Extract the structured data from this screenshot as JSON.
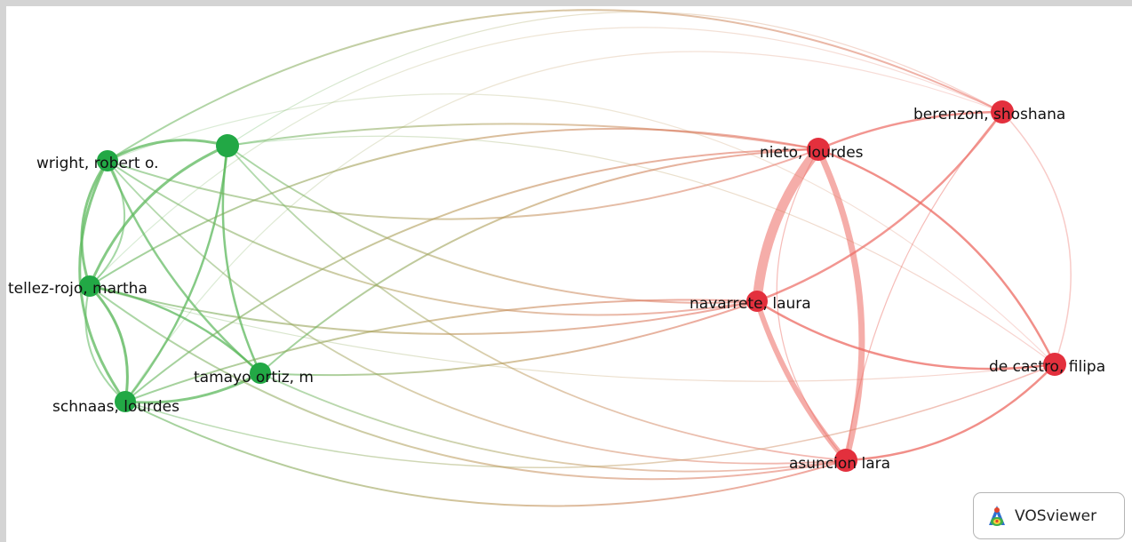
{
  "app": {
    "name": "VOSviewer"
  },
  "colors": {
    "cluster_green": "#22a845",
    "cluster_red": "#e3303d",
    "link_green": "#5cb85c",
    "link_red": "#ec6a62",
    "link_mixed": "#b99a58"
  },
  "network": {
    "nodes": [
      {
        "id": "wright",
        "label": "wright, robert o.",
        "cluster": "green"
      },
      {
        "id": "unlabeled",
        "label": "",
        "cluster": "green"
      },
      {
        "id": "tellez",
        "label": "tellez-rojo, martha",
        "cluster": "green"
      },
      {
        "id": "tamayo",
        "label": "tamayo ortiz, m",
        "cluster": "green"
      },
      {
        "id": "schnaas",
        "label": "schnaas, lourdes",
        "cluster": "green"
      },
      {
        "id": "nieto",
        "label": "nieto, lourdes",
        "cluster": "red"
      },
      {
        "id": "berenzon",
        "label": "berenzon, shoshana",
        "cluster": "red"
      },
      {
        "id": "navarrete",
        "label": "navarrete, laura",
        "cluster": "red"
      },
      {
        "id": "decastro",
        "label": "de castro, filipa",
        "cluster": "red"
      },
      {
        "id": "asuncion",
        "label": "asuncion lara",
        "cluster": "red"
      }
    ]
  }
}
